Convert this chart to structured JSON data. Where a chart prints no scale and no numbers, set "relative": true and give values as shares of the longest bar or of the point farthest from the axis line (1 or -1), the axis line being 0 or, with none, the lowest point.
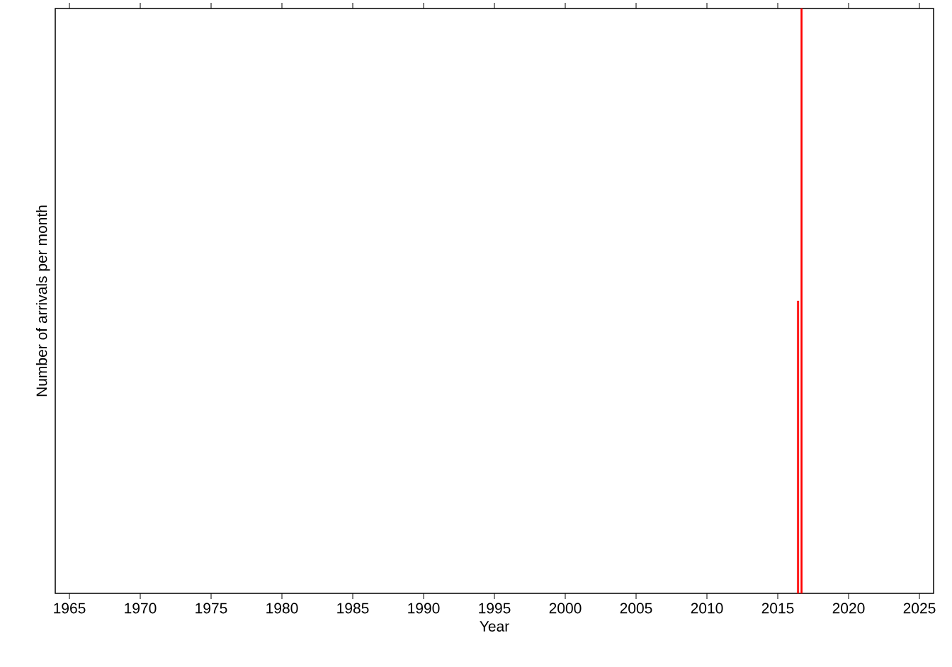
{
  "chart_data": {
    "type": "bar",
    "xlabel": "Year",
    "ylabel": "Number of arrivals per month",
    "x": [
      2016.43,
      2016.68
    ],
    "values": [
      0.5,
      1
    ],
    "relative": true,
    "color": "#ff0000",
    "xlim": [
      1964,
      2026
    ],
    "xticks": [
      1965,
      1970,
      1975,
      1980,
      1985,
      1990,
      1995,
      2000,
      2005,
      2010,
      2015,
      2020,
      2025
    ]
  }
}
